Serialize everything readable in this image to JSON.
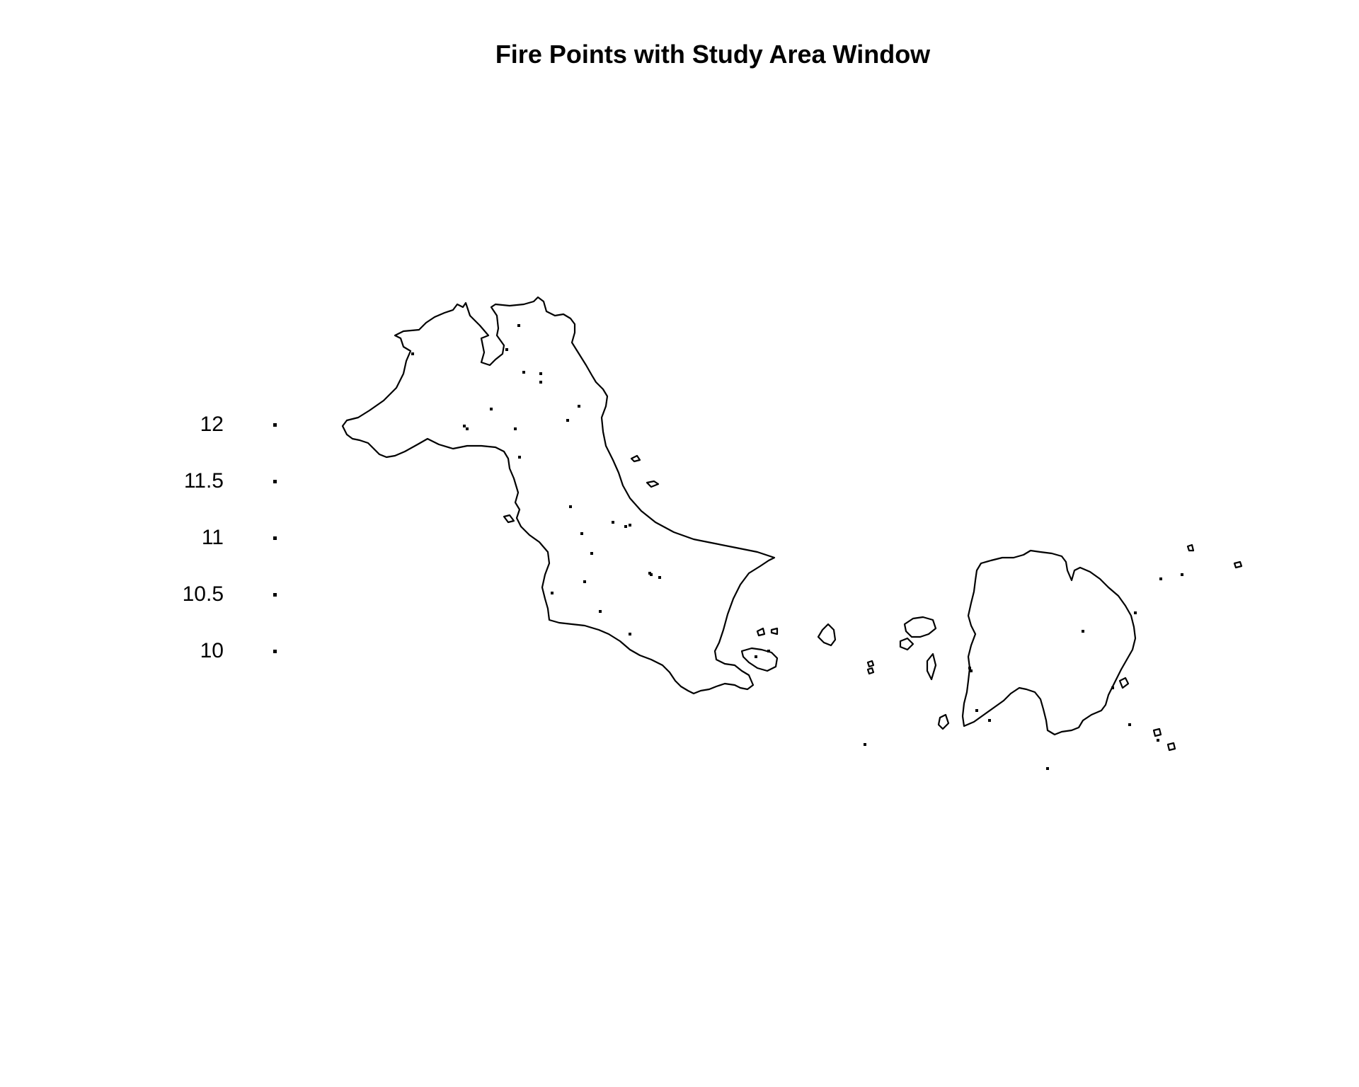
{
  "title": "Fire Points with Study Area Window",
  "colors": {
    "background": "#ffffff",
    "outline": "#000000",
    "points": "#000000"
  },
  "legend": {
    "items": [
      "12",
      "11.5",
      "11",
      "10.5",
      "10"
    ]
  },
  "chart_data": {
    "type": "point-pattern map",
    "title": "Fire Points with Study Area Window",
    "legend_values": [
      12,
      11.5,
      11,
      10.5,
      10
    ],
    "legend_placement": "left",
    "grid": false,
    "axes": false
  }
}
